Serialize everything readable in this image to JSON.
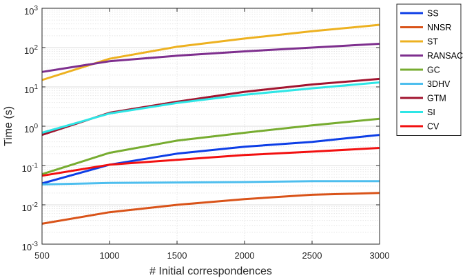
{
  "chart_data": {
    "type": "line",
    "xlabel": "# Initial correspondences",
    "ylabel": "Time (s)",
    "yscale": "log",
    "xlim": [
      500,
      3000
    ],
    "ylim": [
      0.001,
      1000
    ],
    "xticks": [
      "500",
      "1000",
      "1500",
      "2000",
      "2500",
      "3000"
    ],
    "yticks_exponents": [
      "-3",
      "-2",
      "-1",
      "0",
      "1",
      "2",
      "3"
    ],
    "ytick_base": "10",
    "grid": true,
    "legend_position": "right-outside",
    "x": [
      500,
      1000,
      1500,
      2000,
      2500,
      3000
    ],
    "series": [
      {
        "name": "SS",
        "color": "#0d3ee6",
        "values": [
          0.035,
          0.105,
          0.2,
          0.3,
          0.4,
          0.6
        ]
      },
      {
        "name": "NNSR",
        "color": "#d95319",
        "values": [
          0.0033,
          0.0065,
          0.01,
          0.014,
          0.018,
          0.02
        ]
      },
      {
        "name": "ST",
        "color": "#edb120",
        "values": [
          15,
          52,
          105,
          170,
          260,
          380
        ]
      },
      {
        "name": "RANSAC",
        "color": "#7e2f8e",
        "values": [
          24,
          45,
          62,
          80,
          100,
          125
        ]
      },
      {
        "name": "GC",
        "color": "#77ac30",
        "values": [
          0.06,
          0.21,
          0.43,
          0.68,
          1.05,
          1.55
        ]
      },
      {
        "name": "3DHV",
        "color": "#4dbeee",
        "values": [
          0.033,
          0.036,
          0.037,
          0.038,
          0.04,
          0.04
        ]
      },
      {
        "name": "GTM",
        "color": "#a2142f",
        "values": [
          0.6,
          2.2,
          4.2,
          7.5,
          11.5,
          16
        ]
      },
      {
        "name": "SI",
        "color": "#2ee6e6",
        "values": [
          0.68,
          2.1,
          3.9,
          6.3,
          9.2,
          13
        ]
      },
      {
        "name": "CV",
        "color": "#f21010",
        "values": [
          0.055,
          0.105,
          0.14,
          0.185,
          0.225,
          0.28
        ]
      }
    ]
  }
}
